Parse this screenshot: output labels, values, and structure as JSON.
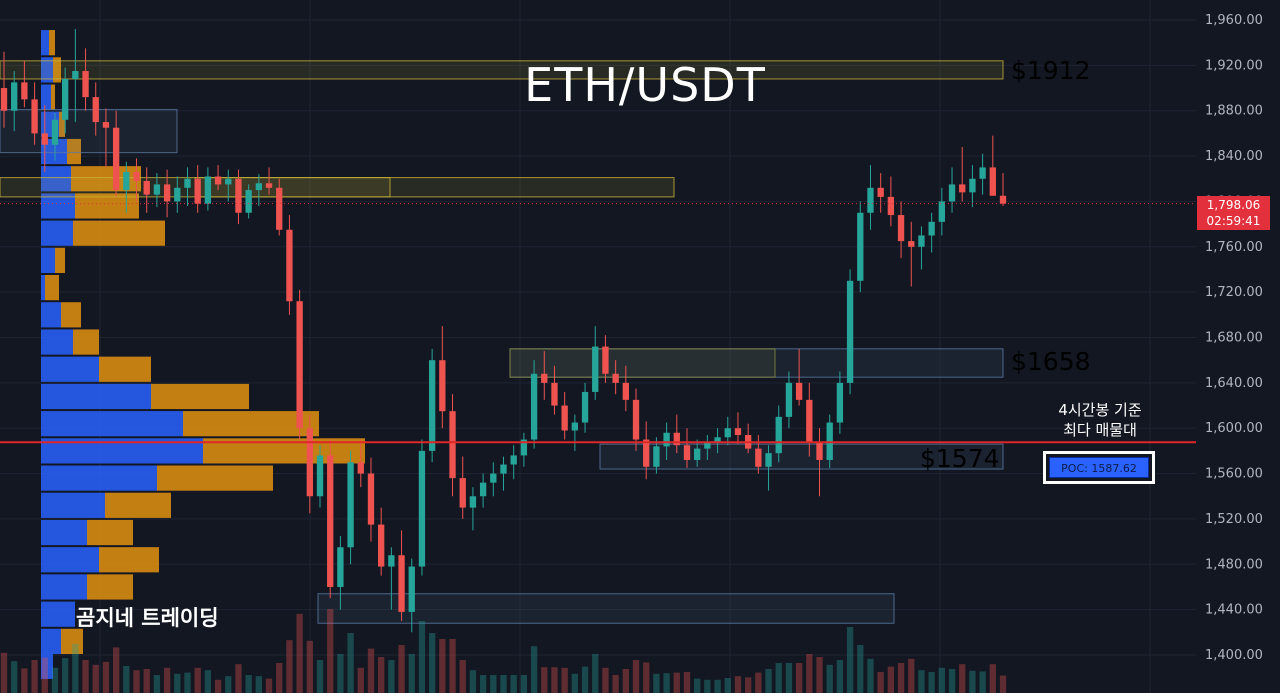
{
  "chart_data": {
    "type": "candlestick",
    "title": "ETH/USDT",
    "watermark": "곰지네 트레이딩",
    "y_axis": {
      "ticks": [
        "1,960.00",
        "1,920.00",
        "1,880.00",
        "1,840.00",
        "1,800.00",
        "1,760.00",
        "1,720.00",
        "1,680.00",
        "1,640.00",
        "1,600.00",
        "1,560.00",
        "1,520.00",
        "1,480.00",
        "1,440.00",
        "1,400.00"
      ],
      "range": [
        1388,
        1976
      ]
    },
    "last_price": {
      "value": "1,798.06",
      "countdown": "02:59:41",
      "color": "#e3303d"
    },
    "poc": {
      "label": "POC: 1587.62",
      "value": 1587.62,
      "color": "#e02727"
    },
    "annotation": {
      "line1": "4시간봉 기준",
      "line2": "최다 매물대"
    },
    "levels": [
      {
        "label": "$1912",
        "color": "#f0b43c"
      },
      {
        "label": "$1658",
        "color": "#4f8cf5"
      },
      {
        "label": "$1574",
        "color": "#4f8cf5"
      }
    ],
    "zones": [
      {
        "from": 1908,
        "to": 1924,
        "x0": 0,
        "x1": 1003,
        "color": "#c9b43a"
      },
      {
        "from": 1804,
        "to": 1821,
        "x0": 0,
        "x1": 390,
        "color": "#c9b43a"
      },
      {
        "from": 1804,
        "to": 1821,
        "x0": 195,
        "x1": 674,
        "color": "#c9b43a"
      },
      {
        "from": 1843,
        "to": 1881,
        "x0": 0,
        "x1": 177,
        "color": "#5b7aa8"
      },
      {
        "from": 1645,
        "to": 1670,
        "x0": 510,
        "x1": 1003,
        "color": "#5b7aa8"
      },
      {
        "from": 1645,
        "to": 1670,
        "x0": 510,
        "x1": 775,
        "color": "#8a8a3a"
      },
      {
        "from": 1564,
        "to": 1586,
        "x0": 600,
        "x1": 1003,
        "color": "#5b7aa8"
      },
      {
        "from": 1428,
        "to": 1454,
        "x0": 318,
        "x1": 894,
        "color": "#5b7aa8"
      }
    ],
    "volume_profile": [
      {
        "price": 1940,
        "buy": 8,
        "sell": 6
      },
      {
        "price": 1916,
        "buy": 12,
        "sell": 8
      },
      {
        "price": 1892,
        "buy": 10,
        "sell": 4
      },
      {
        "price": 1868,
        "buy": 18,
        "sell": 6
      },
      {
        "price": 1844,
        "buy": 26,
        "sell": 14
      },
      {
        "price": 1820,
        "buy": 30,
        "sell": 70
      },
      {
        "price": 1796,
        "buy": 34,
        "sell": 64
      },
      {
        "price": 1772,
        "buy": 32,
        "sell": 92
      },
      {
        "price": 1748,
        "buy": 14,
        "sell": 10
      },
      {
        "price": 1724,
        "buy": 4,
        "sell": 14
      },
      {
        "price": 1700,
        "buy": 20,
        "sell": 20
      },
      {
        "price": 1676,
        "buy": 32,
        "sell": 26
      },
      {
        "price": 1652,
        "buy": 58,
        "sell": 52
      },
      {
        "price": 1628,
        "buy": 110,
        "sell": 98
      },
      {
        "price": 1604,
        "buy": 142,
        "sell": 136
      },
      {
        "price": 1580,
        "buy": 162,
        "sell": 162
      },
      {
        "price": 1556,
        "buy": 116,
        "sell": 116
      },
      {
        "price": 1532,
        "buy": 64,
        "sell": 66
      },
      {
        "price": 1508,
        "buy": 46,
        "sell": 46
      },
      {
        "price": 1484,
        "buy": 58,
        "sell": 60
      },
      {
        "price": 1460,
        "buy": 46,
        "sell": 46
      },
      {
        "price": 1436,
        "buy": 34,
        "sell": 0
      },
      {
        "price": 1412,
        "buy": 20,
        "sell": 22
      },
      {
        "price": 1390,
        "buy": 12,
        "sell": 0
      }
    ],
    "candles": [
      [
        1900,
        1932,
        1865,
        1880
      ],
      [
        1880,
        1915,
        1862,
        1905
      ],
      [
        1905,
        1924,
        1883,
        1890
      ],
      [
        1890,
        1905,
        1850,
        1860
      ],
      [
        1860,
        1885,
        1826,
        1850
      ],
      [
        1850,
        1878,
        1836,
        1872
      ],
      [
        1872,
        1918,
        1860,
        1908
      ],
      [
        1908,
        1952,
        1870,
        1915
      ],
      [
        1915,
        1935,
        1880,
        1892
      ],
      [
        1892,
        1905,
        1858,
        1870
      ],
      [
        1870,
        1882,
        1830,
        1865
      ],
      [
        1865,
        1880,
        1804,
        1810
      ],
      [
        1810,
        1835,
        1790,
        1826
      ],
      [
        1826,
        1838,
        1800,
        1818
      ],
      [
        1818,
        1830,
        1790,
        1806
      ],
      [
        1806,
        1825,
        1795,
        1815
      ],
      [
        1815,
        1828,
        1786,
        1800
      ],
      [
        1800,
        1822,
        1790,
        1812
      ],
      [
        1812,
        1830,
        1796,
        1820
      ],
      [
        1820,
        1832,
        1790,
        1798
      ],
      [
        1798,
        1830,
        1792,
        1822
      ],
      [
        1822,
        1832,
        1810,
        1815
      ],
      [
        1815,
        1828,
        1800,
        1820
      ],
      [
        1820,
        1828,
        1780,
        1790
      ],
      [
        1790,
        1815,
        1785,
        1810
      ],
      [
        1810,
        1824,
        1796,
        1816
      ],
      [
        1816,
        1830,
        1806,
        1812
      ],
      [
        1812,
        1820,
        1770,
        1775
      ],
      [
        1775,
        1788,
        1700,
        1712
      ],
      [
        1712,
        1722,
        1590,
        1600
      ],
      [
        1600,
        1612,
        1525,
        1540
      ],
      [
        1540,
        1585,
        1530,
        1576
      ],
      [
        1576,
        1590,
        1450,
        1460
      ],
      [
        1460,
        1505,
        1440,
        1495
      ],
      [
        1495,
        1580,
        1480,
        1570
      ],
      [
        1570,
        1590,
        1548,
        1560
      ],
      [
        1560,
        1574,
        1500,
        1515
      ],
      [
        1515,
        1530,
        1470,
        1478
      ],
      [
        1478,
        1495,
        1440,
        1488
      ],
      [
        1488,
        1510,
        1430,
        1438
      ],
      [
        1438,
        1485,
        1420,
        1478
      ],
      [
        1478,
        1590,
        1470,
        1580
      ],
      [
        1580,
        1670,
        1570,
        1660
      ],
      [
        1660,
        1690,
        1600,
        1615
      ],
      [
        1615,
        1630,
        1540,
        1556
      ],
      [
        1556,
        1575,
        1520,
        1530
      ],
      [
        1530,
        1548,
        1510,
        1540
      ],
      [
        1540,
        1560,
        1530,
        1552
      ],
      [
        1552,
        1570,
        1540,
        1560
      ],
      [
        1560,
        1575,
        1545,
        1568
      ],
      [
        1568,
        1585,
        1555,
        1576
      ],
      [
        1576,
        1596,
        1566,
        1590
      ],
      [
        1590,
        1660,
        1582,
        1648
      ],
      [
        1648,
        1668,
        1625,
        1640
      ],
      [
        1640,
        1655,
        1612,
        1620
      ],
      [
        1620,
        1632,
        1590,
        1598
      ],
      [
        1598,
        1612,
        1580,
        1605
      ],
      [
        1605,
        1640,
        1596,
        1632
      ],
      [
        1632,
        1690,
        1625,
        1672
      ],
      [
        1672,
        1682,
        1640,
        1648
      ],
      [
        1648,
        1660,
        1630,
        1640
      ],
      [
        1640,
        1655,
        1615,
        1625
      ],
      [
        1625,
        1635,
        1580,
        1590
      ],
      [
        1590,
        1606,
        1555,
        1566
      ],
      [
        1566,
        1592,
        1560,
        1584
      ],
      [
        1584,
        1605,
        1572,
        1596
      ],
      [
        1596,
        1612,
        1578,
        1585
      ],
      [
        1585,
        1600,
        1565,
        1572
      ],
      [
        1572,
        1590,
        1566,
        1582
      ],
      [
        1582,
        1594,
        1572,
        1588
      ],
      [
        1588,
        1600,
        1578,
        1592
      ],
      [
        1592,
        1610,
        1585,
        1600
      ],
      [
        1600,
        1614,
        1586,
        1594
      ],
      [
        1594,
        1604,
        1578,
        1582
      ],
      [
        1582,
        1594,
        1560,
        1566
      ],
      [
        1566,
        1585,
        1545,
        1578
      ],
      [
        1578,
        1620,
        1570,
        1610
      ],
      [
        1610,
        1650,
        1600,
        1640
      ],
      [
        1640,
        1670,
        1620,
        1625
      ],
      [
        1625,
        1640,
        1575,
        1588
      ],
      [
        1588,
        1600,
        1540,
        1572
      ],
      [
        1572,
        1612,
        1565,
        1605
      ],
      [
        1605,
        1650,
        1595,
        1640
      ],
      [
        1640,
        1740,
        1630,
        1730
      ],
      [
        1730,
        1800,
        1720,
        1790
      ],
      [
        1790,
        1832,
        1775,
        1812
      ],
      [
        1812,
        1825,
        1790,
        1804
      ],
      [
        1804,
        1822,
        1778,
        1788
      ],
      [
        1788,
        1800,
        1750,
        1765
      ],
      [
        1765,
        1782,
        1725,
        1760
      ],
      [
        1760,
        1778,
        1740,
        1770
      ],
      [
        1770,
        1790,
        1755,
        1782
      ],
      [
        1782,
        1812,
        1770,
        1800
      ],
      [
        1800,
        1830,
        1790,
        1815
      ],
      [
        1815,
        1848,
        1800,
        1808
      ],
      [
        1808,
        1832,
        1795,
        1820
      ],
      [
        1820,
        1842,
        1806,
        1830
      ],
      [
        1830,
        1858,
        1810,
        1805
      ],
      [
        1805,
        1825,
        1796,
        1798
      ]
    ]
  }
}
